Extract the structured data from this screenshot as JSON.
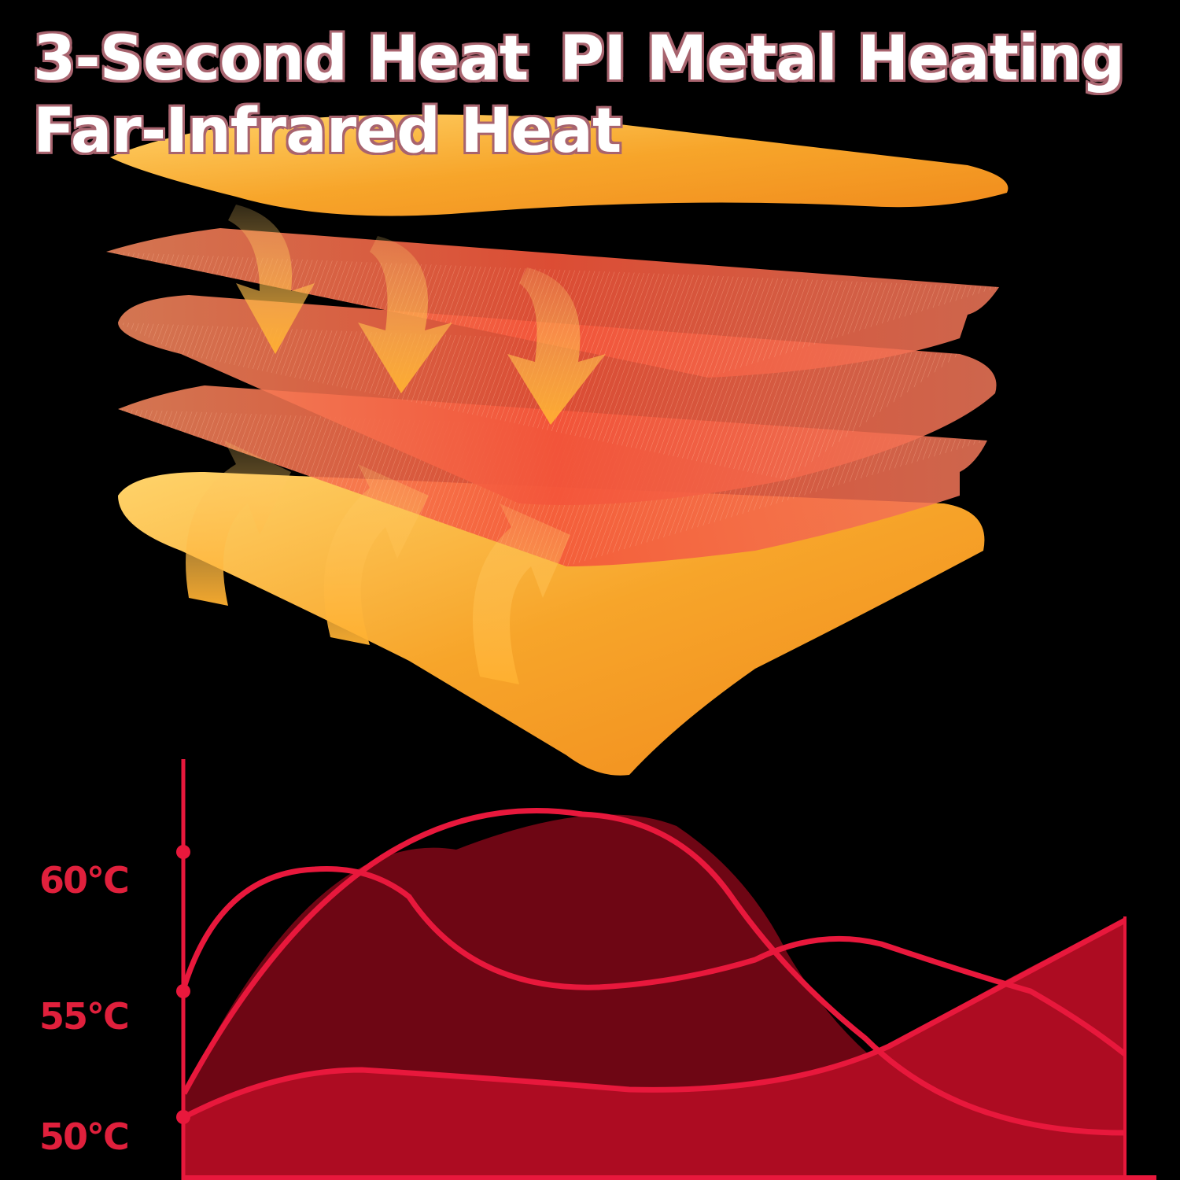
{
  "headline": {
    "line1_part1": "3-Second Heat",
    "line1_part2": "PI Metal Heating",
    "line2": "Far-Infrared Heat"
  },
  "chart": {
    "y_tick_labels": [
      "60°C",
      "55°C",
      "50°C"
    ]
  },
  "colors": {
    "title_outline": "#a8646f",
    "heat_orange": "#f6a623",
    "heat_red": "#f05a3a",
    "curve_red": "#e8183c",
    "fill_dark": "#6e0614",
    "fill_mid": "#ad0c22"
  }
}
